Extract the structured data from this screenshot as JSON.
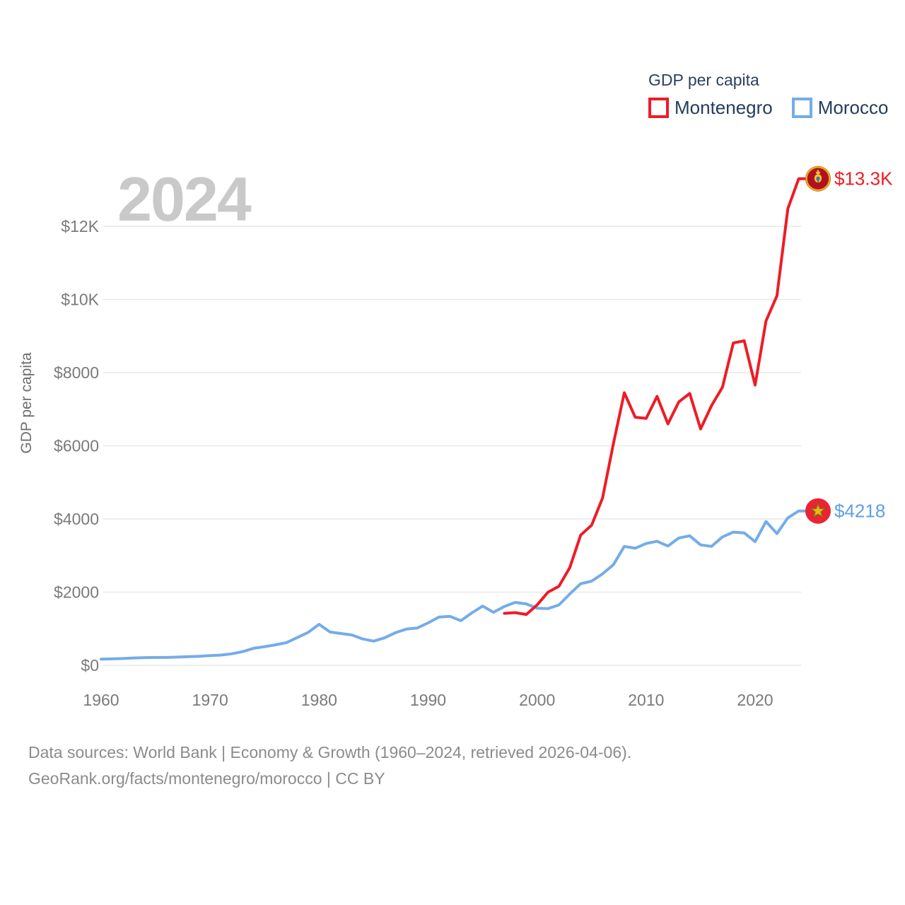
{
  "legend": {
    "title": "GDP per capita",
    "items": [
      {
        "label": "Montenegro",
        "color": "#ee1c25"
      },
      {
        "label": "Morocco",
        "color": "#74ace8"
      }
    ]
  },
  "watermark": "2024",
  "y_axis_title": "GDP per capita",
  "footer": {
    "line1": "Data sources: World Bank | Economy & Growth (1960–2024, retrieved 2026-04-06).",
    "line2": "GeoRank.org/facts/montenegro/morocco | CC BY"
  },
  "chart_data": {
    "type": "line",
    "title": "GDP per capita",
    "xlabel": "",
    "ylabel": "GDP per capita",
    "xlim": [
      1958.5,
      2026.5
    ],
    "ylim": [
      0,
      13800
    ],
    "grid": "horizontal",
    "legend_position": "top-right",
    "x_ticks": [
      1960,
      1970,
      1980,
      1990,
      2000,
      2010,
      2020
    ],
    "y_ticks": [
      {
        "value": 0,
        "label": "$0"
      },
      {
        "value": 2000,
        "label": "$2000"
      },
      {
        "value": 4000,
        "label": "$4000"
      },
      {
        "value": 6000,
        "label": "$6000"
      },
      {
        "value": 8000,
        "label": "$8000"
      },
      {
        "value": 10000,
        "label": "$10K"
      },
      {
        "value": 12000,
        "label": "$12K"
      }
    ],
    "series": [
      {
        "name": "Montenegro",
        "color": "#ee1c25",
        "end_label": "$13.3K",
        "end_label_color": "#ee1c25",
        "flag": "montenegro",
        "points": [
          [
            1997,
            1420
          ],
          [
            1998,
            1440
          ],
          [
            1999,
            1390
          ],
          [
            2000,
            1650
          ],
          [
            2001,
            2000
          ],
          [
            2002,
            2160
          ],
          [
            2003,
            2670
          ],
          [
            2004,
            3560
          ],
          [
            2005,
            3830
          ],
          [
            2006,
            4570
          ],
          [
            2007,
            6060
          ],
          [
            2008,
            7450
          ],
          [
            2009,
            6780
          ],
          [
            2010,
            6750
          ],
          [
            2011,
            7350
          ],
          [
            2012,
            6600
          ],
          [
            2013,
            7200
          ],
          [
            2014,
            7430
          ],
          [
            2015,
            6460
          ],
          [
            2016,
            7100
          ],
          [
            2017,
            7600
          ],
          [
            2018,
            8810
          ],
          [
            2019,
            8870
          ],
          [
            2020,
            7660
          ],
          [
            2021,
            9410
          ],
          [
            2022,
            10100
          ],
          [
            2023,
            12480
          ],
          [
            2024,
            13300
          ]
        ]
      },
      {
        "name": "Morocco",
        "color": "#74ace8",
        "end_label": "$4218",
        "end_label_color": "#5f9fe8",
        "flag": "morocco",
        "points": [
          [
            1960,
            170
          ],
          [
            1961,
            175
          ],
          [
            1962,
            185
          ],
          [
            1963,
            200
          ],
          [
            1964,
            210
          ],
          [
            1965,
            215
          ],
          [
            1966,
            215
          ],
          [
            1967,
            225
          ],
          [
            1968,
            235
          ],
          [
            1969,
            245
          ],
          [
            1970,
            265
          ],
          [
            1971,
            280
          ],
          [
            1972,
            315
          ],
          [
            1973,
            375
          ],
          [
            1974,
            465
          ],
          [
            1975,
            510
          ],
          [
            1976,
            560
          ],
          [
            1977,
            620
          ],
          [
            1978,
            760
          ],
          [
            1979,
            900
          ],
          [
            1980,
            1120
          ],
          [
            1981,
            910
          ],
          [
            1982,
            870
          ],
          [
            1983,
            830
          ],
          [
            1984,
            720
          ],
          [
            1985,
            660
          ],
          [
            1986,
            750
          ],
          [
            1987,
            890
          ],
          [
            1988,
            990
          ],
          [
            1989,
            1020
          ],
          [
            1990,
            1160
          ],
          [
            1991,
            1320
          ],
          [
            1992,
            1340
          ],
          [
            1993,
            1220
          ],
          [
            1994,
            1430
          ],
          [
            1995,
            1620
          ],
          [
            1996,
            1450
          ],
          [
            1997,
            1610
          ],
          [
            1998,
            1720
          ],
          [
            1999,
            1680
          ],
          [
            2000,
            1560
          ],
          [
            2001,
            1550
          ],
          [
            2002,
            1650
          ],
          [
            2003,
            1950
          ],
          [
            2004,
            2230
          ],
          [
            2005,
            2300
          ],
          [
            2006,
            2500
          ],
          [
            2007,
            2750
          ],
          [
            2008,
            3250
          ],
          [
            2009,
            3200
          ],
          [
            2010,
            3330
          ],
          [
            2011,
            3390
          ],
          [
            2012,
            3260
          ],
          [
            2013,
            3480
          ],
          [
            2014,
            3540
          ],
          [
            2015,
            3290
          ],
          [
            2016,
            3250
          ],
          [
            2017,
            3510
          ],
          [
            2018,
            3640
          ],
          [
            2019,
            3620
          ],
          [
            2020,
            3380
          ],
          [
            2021,
            3930
          ],
          [
            2022,
            3600
          ],
          [
            2023,
            4030
          ],
          [
            2024,
            4218
          ]
        ]
      }
    ]
  }
}
